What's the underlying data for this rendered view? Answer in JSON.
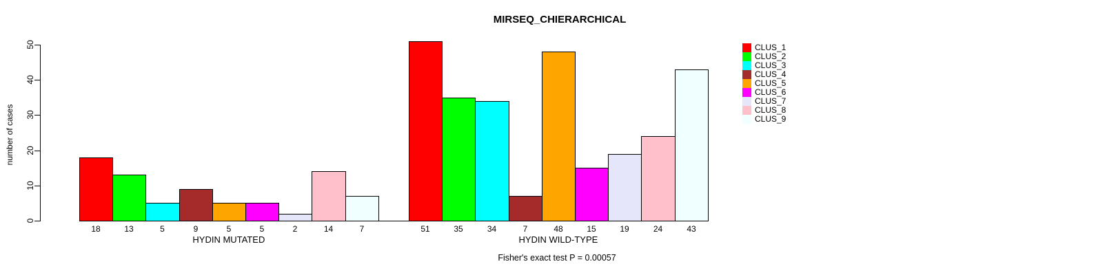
{
  "chart_data": {
    "type": "bar",
    "title": "MIRSEQ_CHIERARCHICAL",
    "xlabel": "",
    "ylabel": "number of cases",
    "ylim": [
      0,
      50
    ],
    "yticks": [
      0,
      10,
      20,
      30,
      40,
      50
    ],
    "grid": false,
    "legend_position": "right",
    "bar_value_labels_shown": true,
    "categories": [
      "HYDIN MUTATED",
      "HYDIN WILD-TYPE"
    ],
    "series": [
      {
        "name": "CLUS_1",
        "color": "#FF0000",
        "values": [
          18,
          51
        ]
      },
      {
        "name": "CLUS_2",
        "color": "#00FF00",
        "values": [
          13,
          35
        ]
      },
      {
        "name": "CLUS_3",
        "color": "#00FFFF",
        "values": [
          5,
          34
        ]
      },
      {
        "name": "CLUS_4",
        "color": "#A52A2A",
        "values": [
          9,
          7
        ]
      },
      {
        "name": "CLUS_5",
        "color": "#FFA500",
        "values": [
          5,
          48
        ]
      },
      {
        "name": "CLUS_6",
        "color": "#FF00FF",
        "values": [
          5,
          15
        ]
      },
      {
        "name": "CLUS_7",
        "color": "#E6E6FA",
        "values": [
          2,
          19
        ]
      },
      {
        "name": "CLUS_8",
        "color": "#FFC0CB",
        "values": [
          14,
          24
        ]
      },
      {
        "name": "CLUS_9",
        "color": "#F0FFFF",
        "values": [
          7,
          43
        ]
      }
    ],
    "annotation": "Fisher's exact test P = 0.00057"
  }
}
